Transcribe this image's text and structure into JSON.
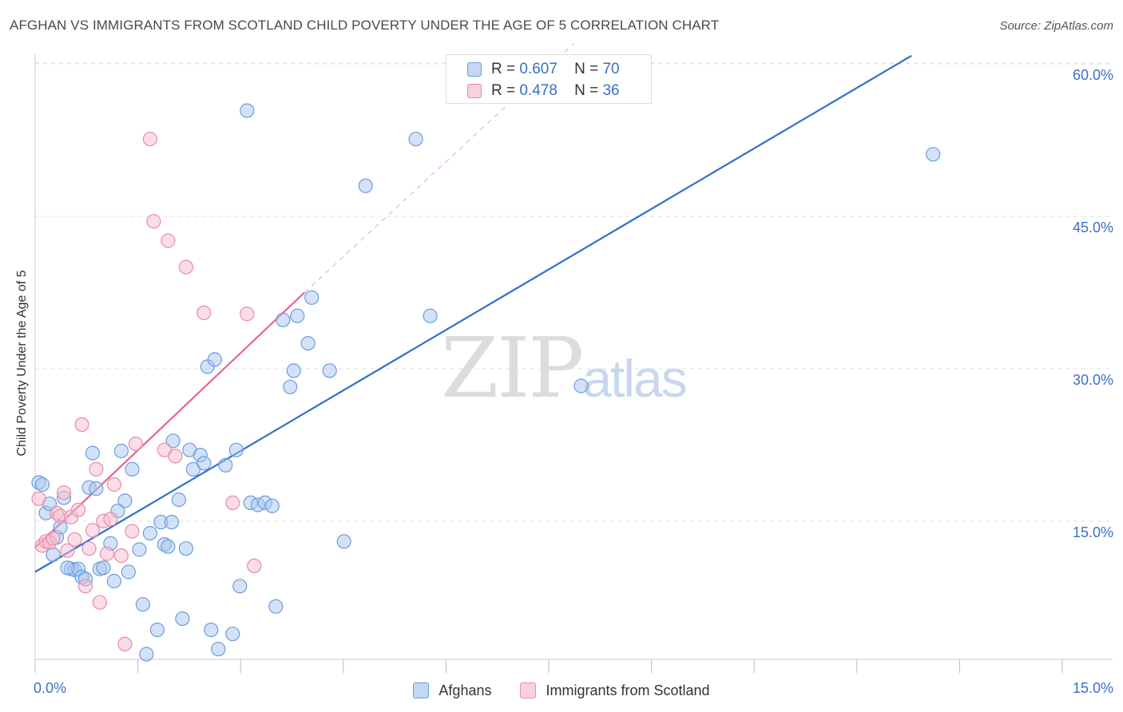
{
  "title": "AFGHAN VS IMMIGRANTS FROM SCOTLAND CHILD POVERTY UNDER THE AGE OF 5 CORRELATION CHART",
  "source": "Source: ZipAtlas.com",
  "watermark": {
    "zip": "ZIP",
    "atlas": "atlas"
  },
  "colors": {
    "afghans_fill": "#a9c6ef",
    "afghans_stroke": "#6b9ddd",
    "afghans_line": "#2f6fce",
    "scotland_fill": "#f6bccd",
    "scotland_stroke": "#e98aaa",
    "scotland_line": "#e8648f",
    "axis_text": "#3a6fc7",
    "grid": "#e2e2e2"
  },
  "legend": {
    "rows": [
      {
        "r_label": "R =",
        "r_value": "0.607",
        "n_label": "N =",
        "n_value": "70"
      },
      {
        "r_label": "R =",
        "r_value": "0.478",
        "n_label": "N =",
        "n_value": "36"
      }
    ]
  },
  "chart_data": {
    "type": "scatter",
    "title": "AFGHAN VS IMMIGRANTS FROM SCOTLAND CHILD POVERTY UNDER THE AGE OF 5 CORRELATION CHART",
    "xlabel": "",
    "ylabel": "Child Poverty Under the Age of 5",
    "xlim": [
      0,
      15
    ],
    "ylim": [
      0,
      62
    ],
    "x_tick_labels": [
      "0.0%",
      "15.0%"
    ],
    "y_ticks": [
      15,
      30,
      45,
      60
    ],
    "y_tick_labels": [
      "15.0%",
      "30.0%",
      "45.0%",
      "60.0%"
    ],
    "grid": true,
    "legend_position": "top-center",
    "series": [
      {
        "name": "Afghans",
        "r": 0.607,
        "n": 70,
        "trend": {
          "x": [
            0,
            12.2
          ],
          "y": [
            10.0,
            60.8
          ],
          "dashed_to": null
        },
        "points": [
          [
            0.05,
            18.8
          ],
          [
            0.1,
            18.6
          ],
          [
            0.15,
            15.8
          ],
          [
            0.2,
            16.7
          ],
          [
            0.25,
            11.7
          ],
          [
            0.3,
            13.4
          ],
          [
            0.35,
            14.4
          ],
          [
            0.4,
            17.3
          ],
          [
            0.5,
            10.3
          ],
          [
            0.55,
            10.2
          ],
          [
            0.6,
            10.3
          ],
          [
            0.65,
            9.5
          ],
          [
            0.75,
            18.3
          ],
          [
            0.8,
            21.7
          ],
          [
            0.85,
            18.2
          ],
          [
            0.9,
            10.3
          ],
          [
            0.95,
            10.4
          ],
          [
            1.05,
            12.8
          ],
          [
            1.1,
            9.1
          ],
          [
            1.2,
            21.9
          ],
          [
            1.25,
            17.0
          ],
          [
            1.3,
            10.0
          ],
          [
            1.35,
            20.1
          ],
          [
            1.45,
            12.2
          ],
          [
            1.5,
            6.8
          ],
          [
            1.55,
            1.9
          ],
          [
            1.6,
            13.8
          ],
          [
            1.7,
            4.3
          ],
          [
            1.75,
            14.9
          ],
          [
            1.8,
            12.7
          ],
          [
            1.85,
            12.5
          ],
          [
            1.9,
            14.9
          ],
          [
            1.92,
            22.9
          ],
          [
            2.0,
            17.1
          ],
          [
            2.05,
            5.4
          ],
          [
            2.1,
            12.3
          ],
          [
            2.15,
            22.0
          ],
          [
            2.2,
            20.1
          ],
          [
            2.3,
            21.5
          ],
          [
            2.35,
            20.7
          ],
          [
            2.4,
            30.2
          ],
          [
            2.45,
            4.3
          ],
          [
            2.5,
            30.9
          ],
          [
            2.55,
            2.4
          ],
          [
            2.65,
            20.5
          ],
          [
            2.75,
            3.9
          ],
          [
            2.8,
            22.0
          ],
          [
            2.85,
            8.6
          ],
          [
            2.95,
            55.4
          ],
          [
            3.0,
            16.8
          ],
          [
            3.1,
            16.6
          ],
          [
            3.2,
            16.8
          ],
          [
            3.3,
            16.5
          ],
          [
            3.35,
            6.6
          ],
          [
            3.45,
            34.8
          ],
          [
            3.55,
            28.2
          ],
          [
            3.6,
            29.8
          ],
          [
            3.65,
            35.2
          ],
          [
            3.8,
            32.5
          ],
          [
            3.85,
            37.0
          ],
          [
            4.1,
            29.8
          ],
          [
            4.3,
            13.0
          ],
          [
            4.6,
            48.0
          ],
          [
            5.3,
            52.6
          ],
          [
            5.5,
            35.2
          ],
          [
            7.6,
            28.3
          ],
          [
            12.5,
            51.1
          ],
          [
            0.45,
            10.4
          ],
          [
            0.7,
            9.3
          ],
          [
            1.15,
            16.0
          ]
        ]
      },
      {
        "name": "Immigrants from Scotland",
        "r": 0.478,
        "n": 36,
        "trend": {
          "x": [
            0,
            3.75
          ],
          "y": [
            12.4,
            37.5
          ],
          "dashed_to": [
            7.5,
            62.0
          ]
        },
        "points": [
          [
            0.05,
            17.2
          ],
          [
            0.1,
            12.6
          ],
          [
            0.15,
            13.0
          ],
          [
            0.2,
            12.9
          ],
          [
            0.25,
            13.3
          ],
          [
            0.3,
            15.8
          ],
          [
            0.35,
            15.5
          ],
          [
            0.4,
            17.8
          ],
          [
            0.45,
            12.1
          ],
          [
            0.5,
            15.4
          ],
          [
            0.6,
            16.1
          ],
          [
            0.65,
            24.5
          ],
          [
            0.7,
            8.6
          ],
          [
            0.75,
            12.3
          ],
          [
            0.8,
            14.1
          ],
          [
            0.85,
            20.1
          ],
          [
            0.9,
            7.0
          ],
          [
            0.95,
            15.0
          ],
          [
            1.0,
            11.8
          ],
          [
            1.1,
            18.6
          ],
          [
            1.2,
            11.6
          ],
          [
            1.25,
            2.9
          ],
          [
            1.35,
            14.0
          ],
          [
            1.4,
            22.6
          ],
          [
            1.6,
            52.6
          ],
          [
            1.65,
            44.5
          ],
          [
            1.8,
            22.0
          ],
          [
            1.85,
            42.6
          ],
          [
            1.95,
            21.4
          ],
          [
            2.1,
            40.0
          ],
          [
            2.35,
            35.5
          ],
          [
            2.75,
            16.8
          ],
          [
            2.95,
            35.4
          ],
          [
            3.05,
            10.6
          ],
          [
            0.55,
            13.2
          ],
          [
            1.05,
            15.2
          ]
        ]
      }
    ]
  },
  "bottom_legend": {
    "items": [
      "Afghans",
      "Immigrants from Scotland"
    ]
  }
}
